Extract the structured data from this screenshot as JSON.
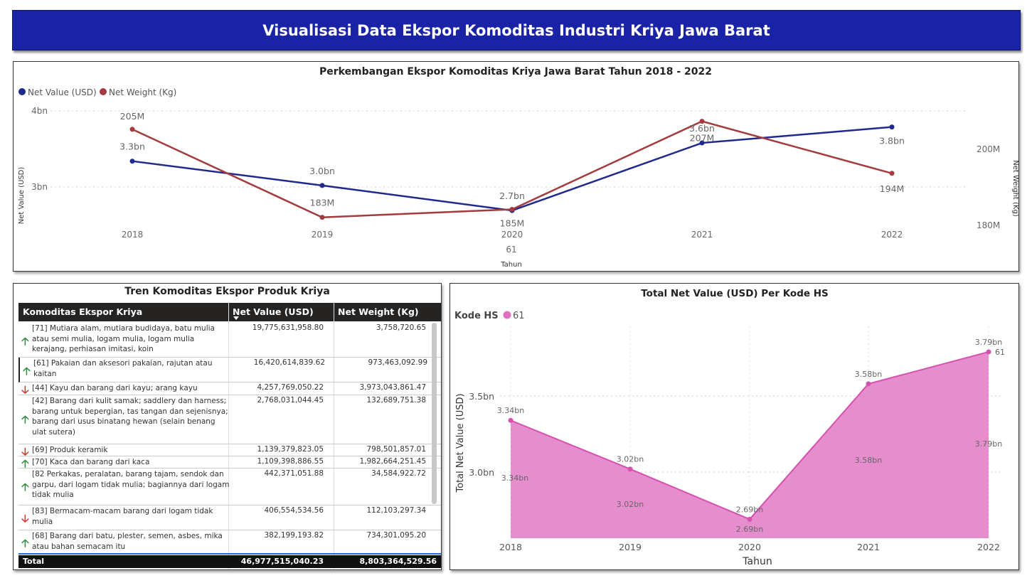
{
  "header": {
    "title": "Visualisasi Data Ekspor Komoditas Industri Kriya Jawa Barat"
  },
  "colors": {
    "header_bg": "#1a23a6",
    "net_value": "#1f2a8c",
    "net_weight": "#a33b3f",
    "area": "#e070c0",
    "up": "#2e8b3c",
    "down": "#d9342b"
  },
  "chart_data": [
    {
      "type": "line",
      "title": "Perkembangan Ekspor Komoditas Kriya Jawa Barat Tahun 2018 - 2022",
      "xlabel": "Tahun",
      "ylabel": "Net Value (USD)",
      "y2label": "Net Weight (Kg)",
      "categories": [
        "2018",
        "2019",
        "2020",
        "2021",
        "2022"
      ],
      "x_subtick": "61",
      "y_ticks": [
        "3bn",
        "4bn"
      ],
      "y2_ticks": [
        "180M",
        "200M"
      ],
      "legend": "top-left",
      "series": [
        {
          "name": "Net Value (USD)",
          "axis": "left",
          "values": [
            3.34,
            3.02,
            2.69,
            3.58,
            3.79
          ],
          "labels": [
            "3.3bn",
            "3.0bn",
            "2.7bn",
            "3.6bn",
            "3.8bn"
          ]
        },
        {
          "name": "Net Weight (Kg)",
          "axis": "right",
          "values": [
            205,
            183,
            185,
            207,
            194
          ],
          "labels": [
            "205M",
            "183M",
            "185M",
            "207M",
            "194M"
          ]
        }
      ]
    },
    {
      "type": "area",
      "title": "Total Net Value (USD) Per Kode HS",
      "xlabel": "Tahun",
      "ylabel": "Total Net Value (USD)",
      "legend_title": "Kode HS",
      "categories": [
        "2018",
        "2019",
        "2020",
        "2021",
        "2022"
      ],
      "y_ticks": [
        "3.0bn",
        "3.5bn"
      ],
      "series": [
        {
          "name": "61",
          "values": [
            3.34,
            3.02,
            2.69,
            3.58,
            3.79
          ],
          "labels": [
            "3.34bn",
            "3.02bn",
            "2.69bn",
            "3.58bn",
            "3.79bn"
          ]
        }
      ]
    }
  ],
  "table": {
    "title": "Tren Komoditas Ekspor Produk Kriya",
    "headers": [
      "Komoditas Ekspor Kriya",
      "Net Value (USD)",
      "Net Weight (Kg)"
    ],
    "rows": [
      {
        "trend": "up",
        "name": "[71] Mutiara alam, mutiara budidaya, batu mulia atau semi mulia, logam mulia, logam mulia kerajang, perhiasan imitasi, koin",
        "net_value": "19,775,631,958.80",
        "net_weight": "3,758,720.65"
      },
      {
        "trend": "up",
        "name": "[61] Pakaian dan aksesori pakaian, rajutan atau kaitan",
        "net_value": "16,420,614,839.62",
        "net_weight": "973,463,092.99"
      },
      {
        "trend": "down",
        "name": "[44] Kayu dan barang dari kayu; arang kayu",
        "net_value": "4,257,769,050.22",
        "net_weight": "3,973,043,861.47"
      },
      {
        "trend": "up",
        "name": "[42] Barang dari kulit samak; saddlery dan harness; barang untuk bepergian, tas tangan dan sejenisnya; barang dari usus binatang hewan (selain benang ulat sutera)",
        "net_value": "2,768,031,044.45",
        "net_weight": "132,689,751.38"
      },
      {
        "trend": "down",
        "name": "[69] Produk keramik",
        "net_value": "1,139,379,823.05",
        "net_weight": "798,501,857.01"
      },
      {
        "trend": "up",
        "name": "[70] Kaca dan barang dari kaca",
        "net_value": "1,109,398,886.55",
        "net_weight": "1,982,664,251.45"
      },
      {
        "trend": "up",
        "name": "[82 Perkakas, peralatan, barang tajam, sendok dan garpu, dari logam tidak mulia; bagiannya dari logam tidak mulia",
        "net_value": "442,371,051.88",
        "net_weight": "34,584,922.72"
      },
      {
        "trend": "down",
        "name": "[83] Bermacam-macam barang dari logam tidak mulia",
        "net_value": "406,554,534.56",
        "net_weight": "112,103,297.34"
      },
      {
        "trend": "up",
        "name": "[68] Barang dari batu, plester, semen, asbes, mika atau bahan semacam itu",
        "net_value": "382,199,193.82",
        "net_weight": "734,301,095.20"
      }
    ],
    "total": {
      "label": "Total",
      "net_value": "46,977,515,040.23",
      "net_weight": "8,803,364,529.56"
    }
  }
}
